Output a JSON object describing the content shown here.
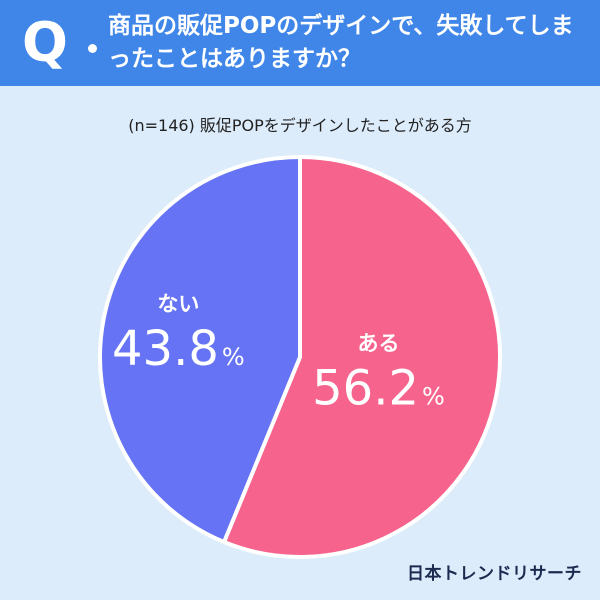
{
  "header": {
    "q_mark": "Q",
    "question": "商品の販促POPのデザインで、失敗してしまったことはありますか？"
  },
  "subtitle": "(n=146) 販促POPをデザインしたことがある方",
  "brand": "日本トレンドリサーチ",
  "colors": {
    "header": "#3f86e8",
    "background": "#dcecfb",
    "yes": "#f6638c",
    "no": "#6573f4",
    "brand": "#1b2a4e"
  },
  "chart_data": {
    "type": "pie",
    "slices": [
      {
        "label": "ある",
        "value": 56.2,
        "display": "56.2",
        "unit": "%",
        "color": "#f6638c"
      },
      {
        "label": "ない",
        "value": 43.8,
        "display": "43.8",
        "unit": "%",
        "color": "#6573f4"
      }
    ],
    "start": "12 o'clock",
    "direction": "clockwise"
  }
}
